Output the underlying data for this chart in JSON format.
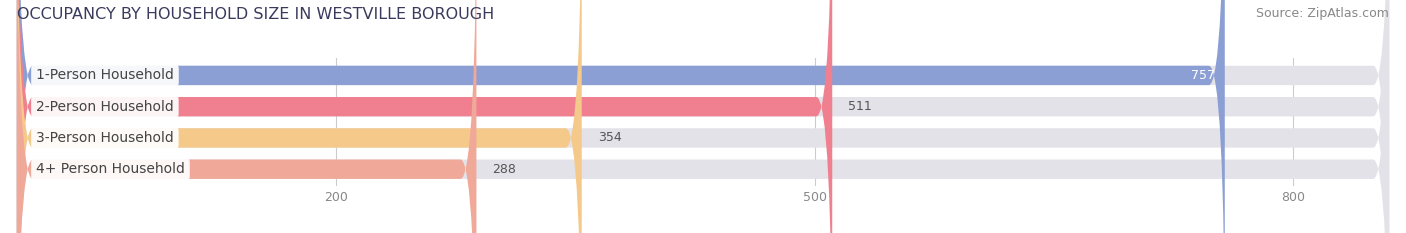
{
  "title": "OCCUPANCY BY HOUSEHOLD SIZE IN WESTVILLE BOROUGH",
  "source": "Source: ZipAtlas.com",
  "categories": [
    "1-Person Household",
    "2-Person Household",
    "3-Person Household",
    "4+ Person Household"
  ],
  "values": [
    757,
    511,
    354,
    288
  ],
  "bar_colors": [
    "#8b9fd4",
    "#f08090",
    "#f5c98a",
    "#f0a898"
  ],
  "bar_bg_color": "#e2e2e8",
  "background_color": "#ffffff",
  "xlim": [
    0,
    860
  ],
  "xticks": [
    200,
    500,
    800
  ],
  "title_fontsize": 11.5,
  "source_fontsize": 9,
  "label_fontsize": 10,
  "value_fontsize": 9,
  "bar_height": 0.62,
  "title_color": "#3a3a5c",
  "label_color": "#444444",
  "value_color_inside": "#ffffff",
  "value_color_outside": "#555555",
  "tick_color": "#888888",
  "grid_color": "#cccccc",
  "source_color": "#888888"
}
